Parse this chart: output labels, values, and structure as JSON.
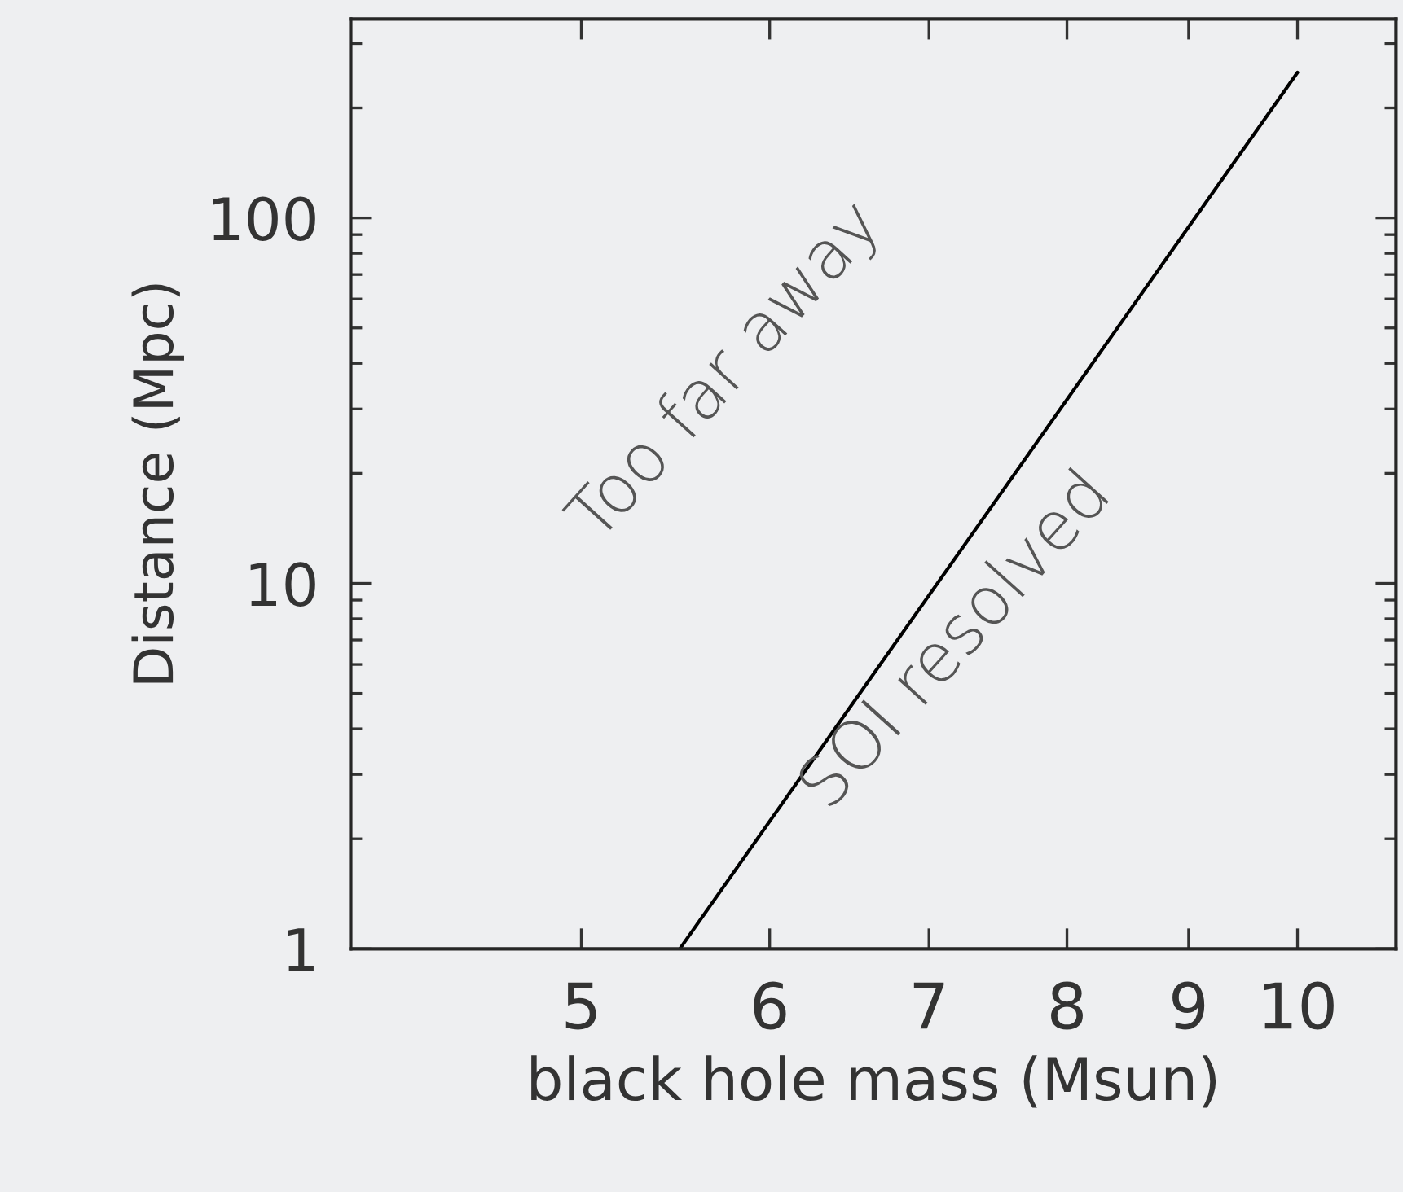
{
  "chart_data": {
    "type": "line",
    "xlabel": "black hole mass (Msun)",
    "ylabel": "Distance (Mpc)",
    "log": "xy",
    "xlim": [
      4,
      11
    ],
    "xticks": [
      5,
      6,
      7,
      8,
      9,
      10
    ],
    "ylim": [
      1,
      350
    ],
    "yticks": [
      1,
      10,
      100
    ],
    "series": [
      {
        "color": "#000000",
        "x": [
          5.5,
          10
        ],
        "values": [
          1,
          250
        ]
      }
    ],
    "annotations": [
      "Too far away",
      "SOI resolved"
    ],
    "grid": false,
    "legend": false
  }
}
